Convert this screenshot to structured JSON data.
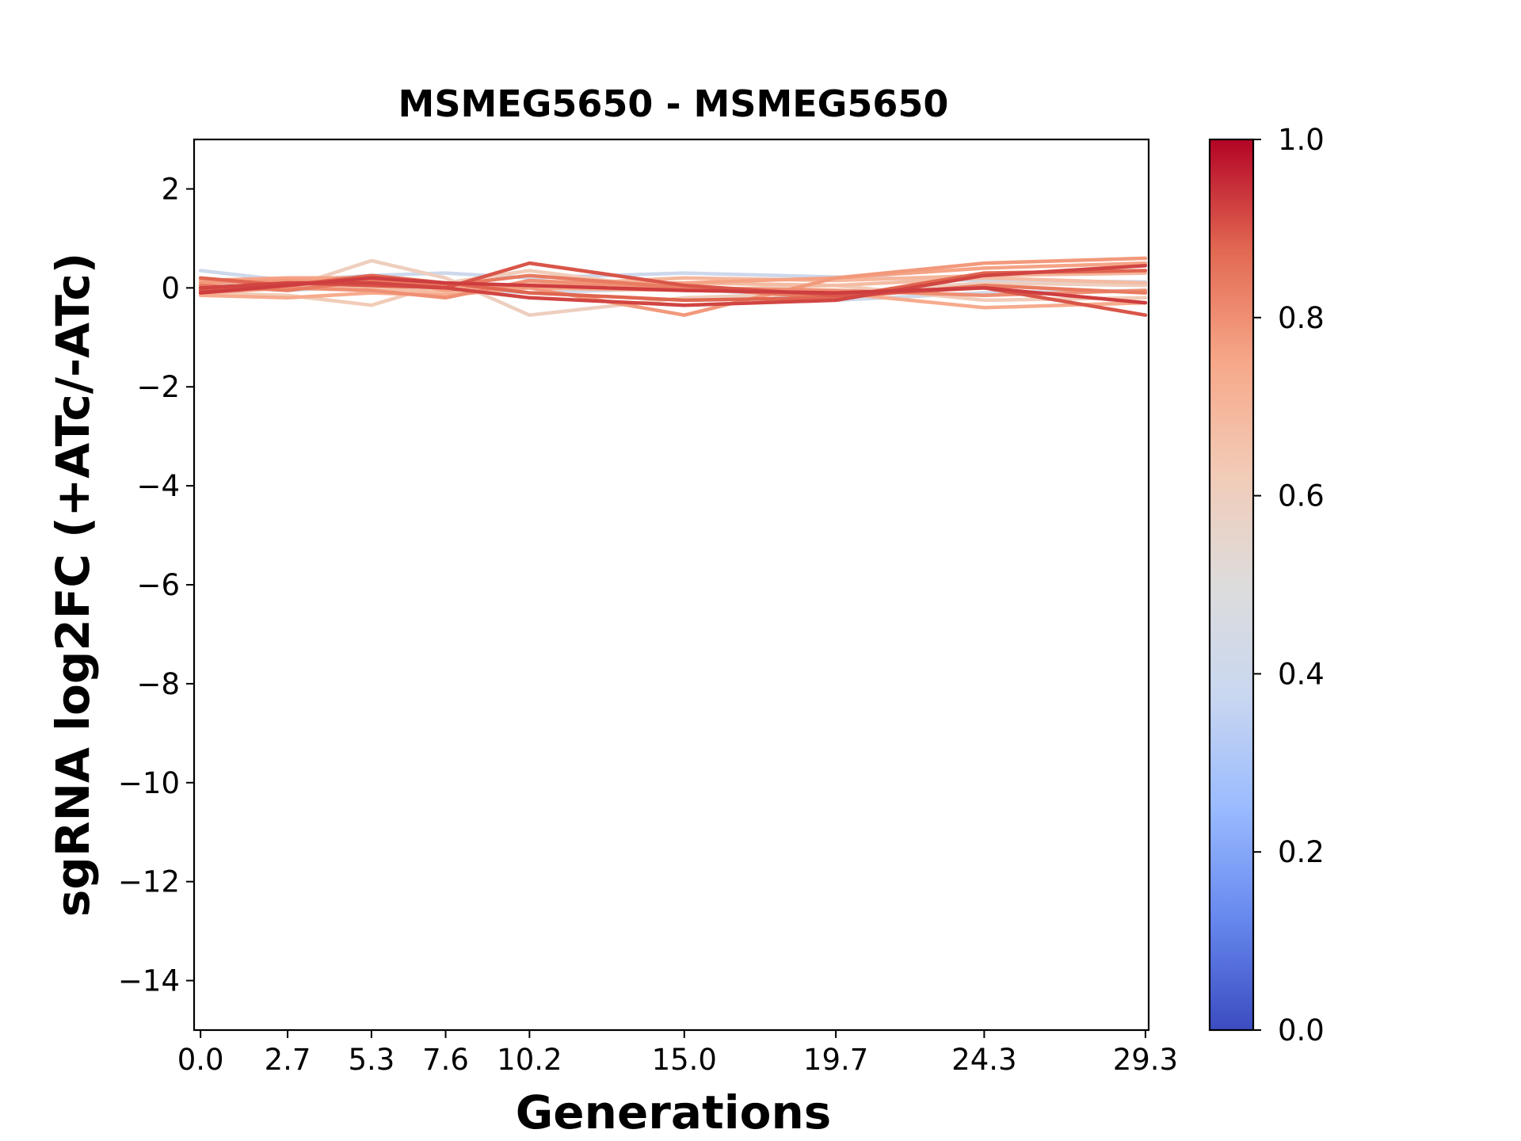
{
  "chart_data": {
    "type": "line",
    "title": "MSMEG5650 - MSMEG5650",
    "xlabel": "Generations",
    "ylabel": "sgRNA log2FC (+ATc/-ATc)",
    "x": [
      0.0,
      2.7,
      5.3,
      7.6,
      10.2,
      15.0,
      19.7,
      24.3,
      29.3
    ],
    "x_tick_labels": [
      "0.0",
      "2.7",
      "5.3",
      "7.6",
      "10.2",
      "15.0",
      "19.7",
      "24.3",
      "29.3"
    ],
    "y_ticks": [
      2,
      0,
      -2,
      -4,
      -6,
      -8,
      -10,
      -12,
      -14
    ],
    "y_tick_labels": [
      "2",
      "0",
      "−2",
      "−4",
      "−6",
      "−8",
      "−10",
      "−12",
      "−14"
    ],
    "xlim": [
      -0.2,
      29.4
    ],
    "ylim": [
      -15,
      3
    ],
    "grid": false,
    "colorbar": {
      "colormap": "coolwarm",
      "range": [
        0.0,
        1.0
      ],
      "ticks": [
        0.0,
        0.2,
        0.4,
        0.6,
        0.8,
        1.0
      ],
      "tick_labels": [
        "0.0",
        "0.2",
        "0.4",
        "0.6",
        "0.8",
        "1.0"
      ],
      "stops": [
        "#3b4cc0",
        "#6788ee",
        "#9abbff",
        "#c9d7f0",
        "#dddcdc",
        "#f2cbb7",
        "#f7a889",
        "#e26952",
        "#b40426"
      ]
    },
    "series": [
      {
        "color_value": 0.4,
        "values": [
          0.35,
          0.15,
          0.25,
          0.3,
          0.2,
          0.3,
          0.22,
          0.15,
          0.12
        ]
      },
      {
        "color_value": 0.42,
        "values": [
          0.1,
          -0.05,
          0.05,
          0.0,
          -0.1,
          0.0,
          -0.25,
          -0.1,
          -0.05
        ]
      },
      {
        "color_value": 0.6,
        "values": [
          0.05,
          0.0,
          0.55,
          0.2,
          -0.55,
          -0.2,
          -0.1,
          0.1,
          0.05
        ]
      },
      {
        "color_value": 0.62,
        "values": [
          -0.1,
          -0.15,
          -0.35,
          0.1,
          0.35,
          -0.05,
          0.05,
          -0.25,
          -0.2
        ]
      },
      {
        "color_value": 0.68,
        "values": [
          0.0,
          0.05,
          0.0,
          -0.1,
          0.1,
          0.1,
          0.05,
          0.2,
          0.1
        ]
      },
      {
        "color_value": 0.7,
        "values": [
          -0.05,
          0.1,
          0.05,
          0.0,
          0.05,
          0.2,
          0.15,
          0.25,
          0.3
        ]
      },
      {
        "color_value": 0.74,
        "values": [
          -0.15,
          -0.2,
          -0.1,
          -0.15,
          0.0,
          -0.05,
          -0.1,
          -0.4,
          -0.3
        ]
      },
      {
        "color_value": 0.76,
        "values": [
          0.15,
          0.2,
          0.2,
          -0.05,
          0.05,
          0.1,
          0.2,
          0.4,
          0.5
        ]
      },
      {
        "color_value": 0.78,
        "values": [
          0.1,
          0.15,
          0.1,
          0.1,
          0.0,
          -0.55,
          0.2,
          0.5,
          0.6
        ]
      },
      {
        "color_value": 0.8,
        "values": [
          -0.1,
          0.0,
          -0.05,
          -0.2,
          0.15,
          0.0,
          -0.05,
          -0.15,
          -0.05
        ]
      },
      {
        "color_value": 0.84,
        "values": [
          0.05,
          -0.05,
          0.15,
          0.05,
          0.25,
          0.0,
          -0.2,
          0.05,
          -0.1
        ]
      },
      {
        "color_value": 0.88,
        "values": [
          0.2,
          0.05,
          0.25,
          0.1,
          -0.1,
          -0.25,
          -0.2,
          0.3,
          0.35
        ]
      },
      {
        "color_value": 0.9,
        "values": [
          -0.05,
          0.1,
          0.05,
          0.0,
          0.5,
          0.05,
          -0.15,
          0.0,
          -0.55
        ]
      },
      {
        "color_value": 0.92,
        "values": [
          0.0,
          0.1,
          0.1,
          0.0,
          -0.2,
          -0.35,
          -0.25,
          0.25,
          0.45
        ]
      },
      {
        "color_value": 0.93,
        "values": [
          -0.1,
          0.05,
          0.2,
          0.1,
          0.05,
          -0.05,
          -0.1,
          0.0,
          -0.3
        ]
      }
    ]
  }
}
